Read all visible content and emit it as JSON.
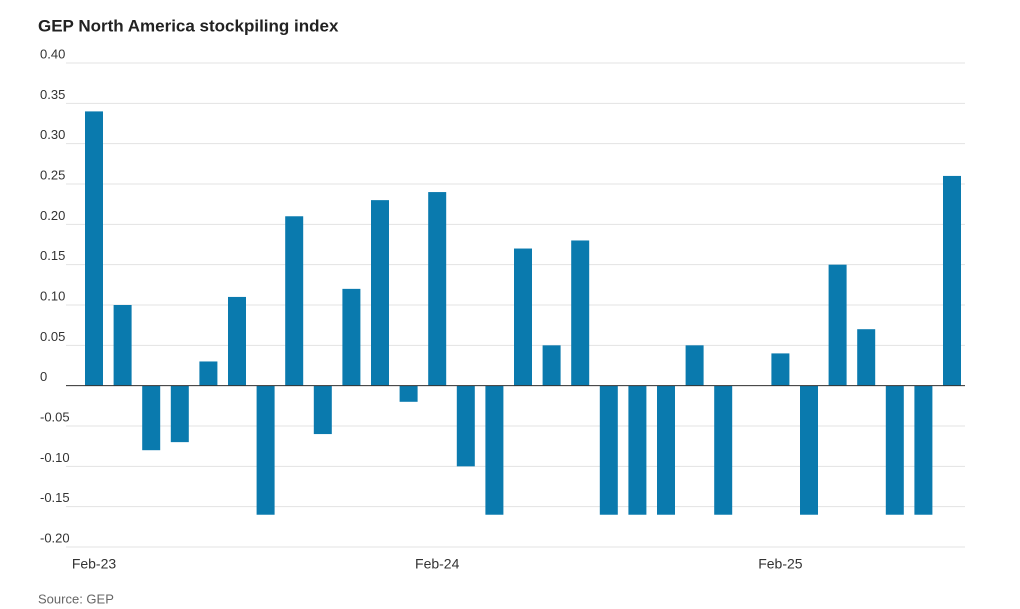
{
  "chart_data": {
    "type": "bar",
    "title": "GEP North America stockpiling index",
    "source": "Source: GEP",
    "categories": [
      "Feb-23",
      null,
      null,
      null,
      null,
      null,
      null,
      null,
      null,
      null,
      null,
      null,
      "Feb-24",
      null,
      null,
      null,
      null,
      null,
      null,
      null,
      null,
      null,
      null,
      null,
      "Feb-25",
      null,
      null,
      null,
      null,
      null,
      null
    ],
    "values": [
      0.34,
      0.1,
      -0.08,
      -0.07,
      0.03,
      0.11,
      -0.16,
      0.21,
      -0.06,
      0.12,
      0.23,
      -0.02,
      0.24,
      -0.1,
      -0.16,
      0.17,
      0.05,
      0.18,
      -0.16,
      -0.16,
      -0.16,
      0.05,
      -0.16,
      0,
      0.04,
      -0.16,
      0.15,
      0.07,
      -0.16,
      -0.16,
      0.26
    ],
    "color": "#0a7aae",
    "ylim": [
      -0.2,
      0.4
    ],
    "yticks": [
      {
        "value": 0.4,
        "label": "0.40"
      },
      0.35,
      {
        "value": 0.3,
        "label": "0.30"
      },
      0.25,
      {
        "value": 0.2,
        "label": "0.20"
      },
      0.15,
      {
        "value": 0.1,
        "label": "0.10"
      },
      0.05,
      0,
      -0.05,
      {
        "value": -0.1,
        "label": "-0.10"
      },
      -0.15,
      {
        "value": -0.2,
        "label": "-0.20"
      }
    ],
    "grid": true
  }
}
